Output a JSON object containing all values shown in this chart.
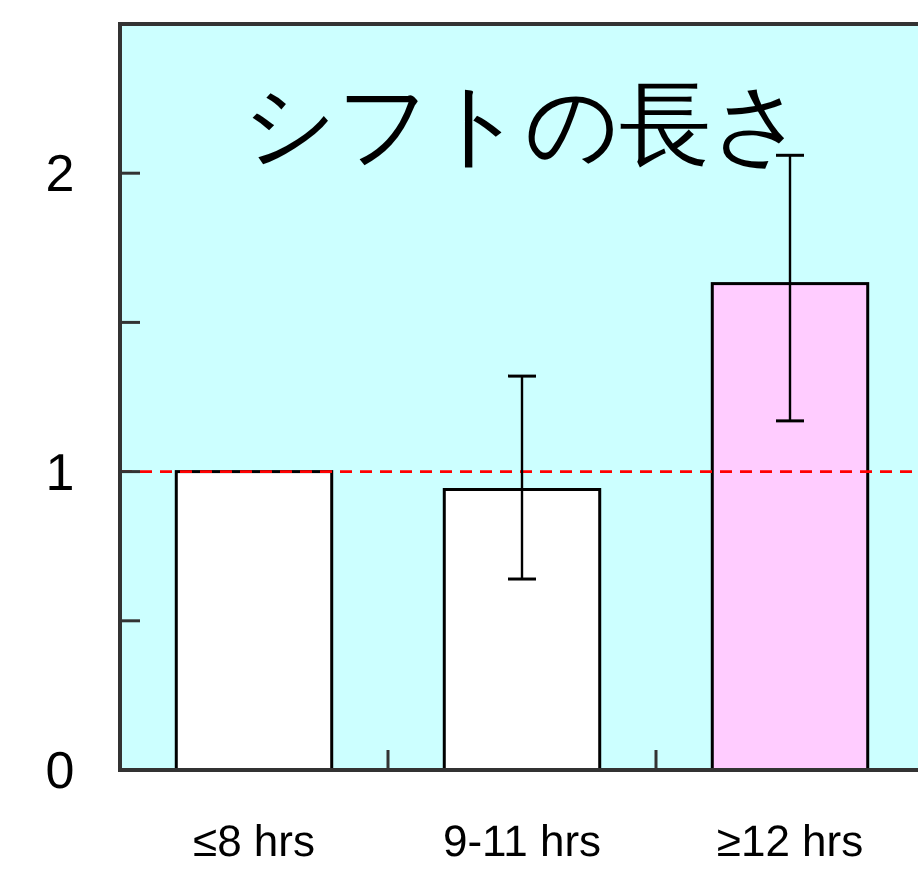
{
  "chart_data": {
    "type": "bar",
    "title": "シフトの長さ",
    "categories": [
      "≤8 hrs",
      "9-11 hrs",
      "≥12 hrs"
    ],
    "values": [
      1.0,
      0.94,
      1.63
    ],
    "colors": [
      "#ffffff",
      "#ffffff",
      "#ffccff"
    ],
    "errors": [
      null,
      [
        0.64,
        1.32
      ],
      [
        1.17,
        2.06
      ]
    ],
    "ylim": [
      0,
      2.5
    ],
    "yticks": [
      0,
      {
        "value": 0.5,
        "label": null
      },
      1,
      {
        "value": 1.5,
        "label": null
      },
      2
    ],
    "ref_lines": [
      {
        "axis": "y",
        "value": 1,
        "color": "#ff0000",
        "line_style": "dashed"
      }
    ],
    "grid": false
  }
}
